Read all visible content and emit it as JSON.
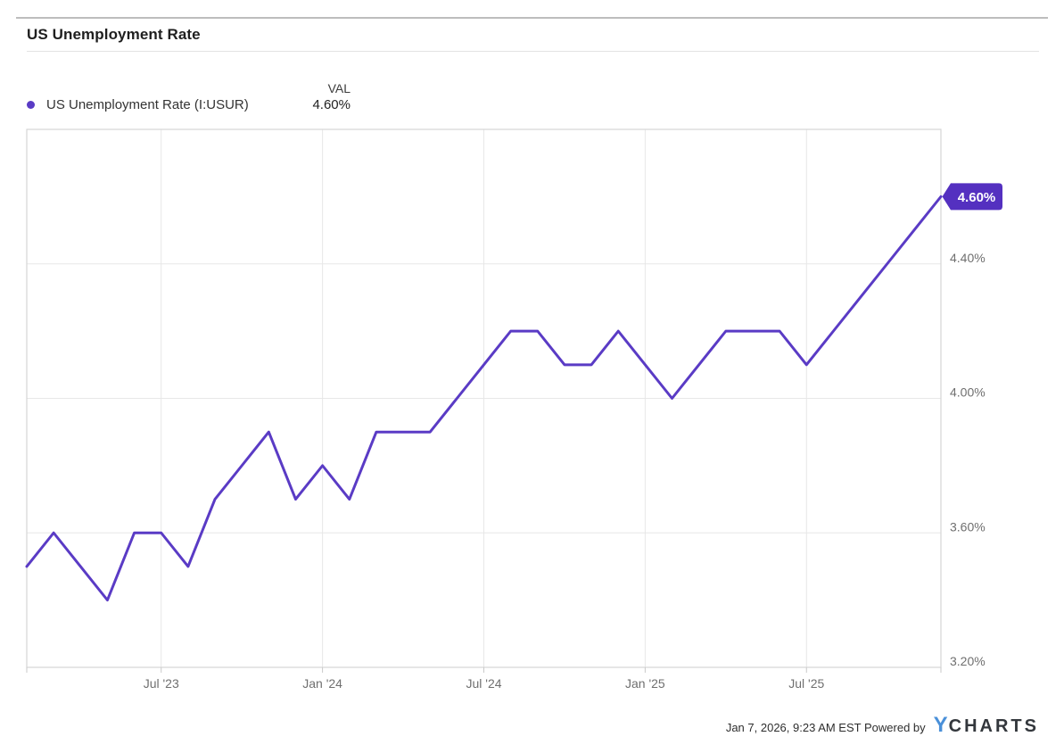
{
  "header": {
    "title": "US Unemployment Rate"
  },
  "legend": {
    "series_label": "US Unemployment Rate (I:USUR)",
    "val_header": "VAL",
    "val_value": "4.60%",
    "dot_color": "#5a3bc5"
  },
  "chart_data": {
    "type": "line",
    "title": "US Unemployment Rate",
    "series_name": "US Unemployment Rate (I:USUR)",
    "unit": "%",
    "x": [
      "Feb '23",
      "Mar '23",
      "Apr '23",
      "May '23",
      "Jun '23",
      "Jul '23",
      "Aug '23",
      "Sep '23",
      "Oct '23",
      "Nov '23",
      "Dec '23",
      "Jan '24",
      "Feb '24",
      "Mar '24",
      "Apr '24",
      "May '24",
      "Jun '24",
      "Jul '24",
      "Aug '24",
      "Sep '24",
      "Oct '24",
      "Nov '24",
      "Dec '24",
      "Jan '25",
      "Feb '25",
      "Mar '25",
      "Apr '25",
      "May '25",
      "Jun '25",
      "Jul '25",
      "Aug '25",
      "Sep '25",
      "Oct '25",
      "Nov '25",
      "Dec '25"
    ],
    "values": [
      3.5,
      3.6,
      3.5,
      3.4,
      3.6,
      3.6,
      3.5,
      3.7,
      3.8,
      3.9,
      3.7,
      3.8,
      3.7,
      3.9,
      3.9,
      3.9,
      4.0,
      4.1,
      4.2,
      4.2,
      4.1,
      4.1,
      4.2,
      4.1,
      4.0,
      4.1,
      4.2,
      4.2,
      4.2,
      4.1,
      4.2,
      4.3,
      4.4,
      4.5,
      4.6
    ],
    "ylim": [
      3.2,
      4.8
    ],
    "ytick_values": [
      3.2,
      3.6,
      4.0,
      4.4
    ],
    "ytick_labels": [
      "3.20%",
      "3.60%",
      "4.00%",
      "4.40%"
    ],
    "xtick_indices": [
      5,
      11,
      17,
      23,
      29
    ],
    "xtick_labels": [
      "Jul '23",
      "Jan '24",
      "Jul '24",
      "Jan '25",
      "Jul '25"
    ],
    "last_value_label": "4.60%",
    "line_color": "#5a3bc5",
    "badge_color": "#5430c0",
    "grid_color": "#e7e7e7",
    "border_color": "#d6d6d6",
    "axis_text_color": "#6f6f6f",
    "grid": true,
    "legend_position": "top-left"
  },
  "footer": {
    "timestamp": "Jan 7, 2026, 9:23 AM EST",
    "powered_by": "Powered by",
    "logo_y": "Y",
    "logo_charts": "CHARTS",
    "logo_y_color": "#4a90d9"
  }
}
